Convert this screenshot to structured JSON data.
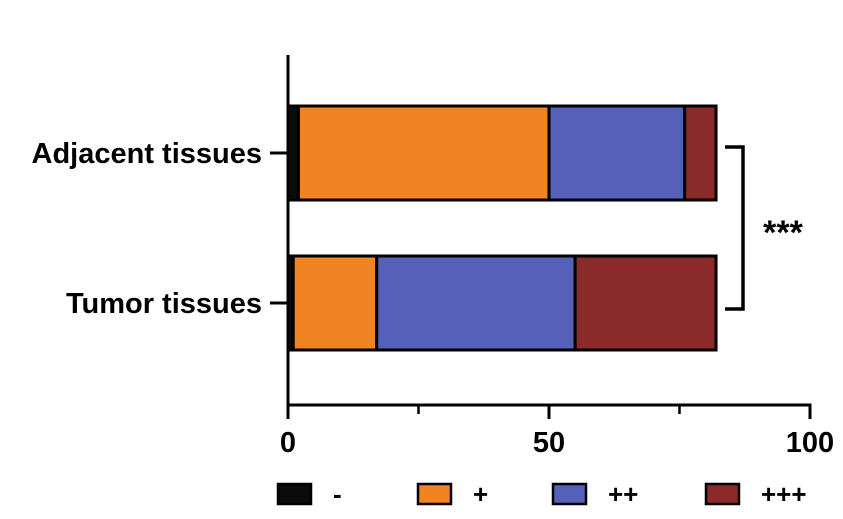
{
  "chart_data": {
    "type": "bar",
    "orientation": "horizontal",
    "stacked": true,
    "categories": [
      "Adjacent tissues",
      "Tumor tissues"
    ],
    "series": [
      {
        "name": "-",
        "color": "#0b0b0b",
        "values": [
          2,
          1
        ]
      },
      {
        "name": "+",
        "color": "#f28322",
        "values": [
          48,
          16
        ]
      },
      {
        "name": "++",
        "color": "#5560b8",
        "values": [
          26,
          38
        ]
      },
      {
        "name": "+++",
        "color": "#8b2a2a",
        "values": [
          6,
          27
        ]
      }
    ],
    "xlim": [
      0,
      100
    ],
    "xticks": [
      0,
      50,
      100
    ],
    "xminor": [
      25,
      75
    ],
    "xtick_labels": [
      "0",
      "50",
      "100"
    ],
    "title": "",
    "xlabel": "",
    "ylabel": "",
    "legend": {
      "position": "bottom"
    },
    "grid": false,
    "significance": {
      "label": "***",
      "between": [
        "Adjacent tissues",
        "Tumor tissues"
      ]
    }
  }
}
